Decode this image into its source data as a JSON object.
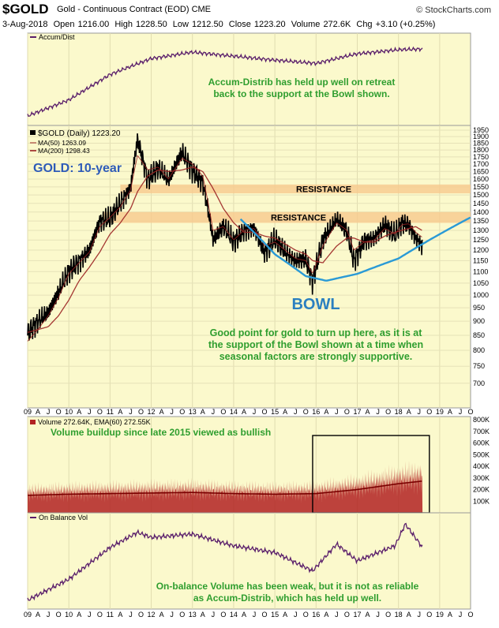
{
  "header": {
    "ticker": "$GOLD",
    "subtitle": "Gold - Continuous Contract (EOD)  CME",
    "brand": "© StockCharts.com",
    "date": "3-Aug-2018",
    "open_label": "Open",
    "open": "1216.00",
    "high_label": "High",
    "high": "1228.50",
    "low_label": "Low",
    "low": "1212.50",
    "close_label": "Close",
    "close": "1223.20",
    "volume_label": "Volume",
    "volume": "272.6K",
    "chg_label": "Chg",
    "chg": "+3.10 (+0.25%)"
  },
  "colors": {
    "panel_bg": "#fbf9cc",
    "price": "#000000",
    "ma": "#9b2222",
    "indicator": "#5a1f6b",
    "annotation": "#2f9e2f",
    "bowl": "#2a9ad6",
    "resistance_band": "#f7c98d",
    "title": "#2e5bb8",
    "volume_fill": "#b22222"
  },
  "x_axis": {
    "tick_labels": [
      "09",
      "A",
      "J",
      "O",
      "10",
      "A",
      "J",
      "O",
      "11",
      "A",
      "J",
      "O",
      "12",
      "A",
      "J",
      "O",
      "13",
      "A",
      "J",
      "O",
      "14",
      "A",
      "J",
      "O",
      "15",
      "A",
      "J",
      "O",
      "16",
      "A",
      "J",
      "O",
      "17",
      "A",
      "J",
      "O",
      "18",
      "A",
      "J",
      "O",
      "19",
      "A",
      "J",
      "O"
    ],
    "range": [
      "2009-01",
      "2019-10"
    ]
  },
  "chart_data": [
    {
      "type": "line",
      "legend": "Accum/Dist",
      "x": [
        "2009-01",
        "2010-01",
        "2011-01",
        "2012-01",
        "2013-01",
        "2014-01",
        "2015-01",
        "2016-01",
        "2017-01",
        "2018-01",
        "2018-08"
      ],
      "values": [
        8,
        28,
        60,
        80,
        88,
        83,
        78,
        74,
        86,
        91,
        92
      ],
      "annotation": "Accum-Distrib has held up well on retreat back to the support at the Bowl shown."
    },
    {
      "type": "line",
      "legend_title": "$GOLD (Daily) 1223.20",
      "legend": [
        "MA(50) 1263.09",
        "MA(200) 1298.43"
      ],
      "big_label": "GOLD: 10-year",
      "y_scale": "log",
      "ylim": [
        650,
        1950
      ],
      "y_ticks": [
        700,
        750,
        800,
        850,
        900,
        950,
        1000,
        1050,
        1100,
        1150,
        1200,
        1250,
        1300,
        1350,
        1400,
        1450,
        1500,
        1550,
        1600,
        1650,
        1700,
        1750,
        1800,
        1850,
        1900,
        1950
      ],
      "x": [
        "2009-01",
        "2009-04",
        "2009-07",
        "2009-10",
        "2010-01",
        "2010-04",
        "2010-07",
        "2010-10",
        "2011-01",
        "2011-04",
        "2011-07",
        "2011-09",
        "2011-12",
        "2012-03",
        "2012-06",
        "2012-10",
        "2013-01",
        "2013-04",
        "2013-07",
        "2013-10",
        "2014-01",
        "2014-04",
        "2014-07",
        "2014-10",
        "2015-01",
        "2015-04",
        "2015-07",
        "2015-10",
        "2015-12",
        "2016-03",
        "2016-07",
        "2016-10",
        "2016-12",
        "2017-03",
        "2017-06",
        "2017-09",
        "2017-12",
        "2018-02",
        "2018-04",
        "2018-06",
        "2018-08"
      ],
      "series": [
        {
          "name": "$GOLD",
          "values": [
            860,
            900,
            930,
            1010,
            1100,
            1150,
            1200,
            1350,
            1360,
            1450,
            1550,
            1880,
            1600,
            1670,
            1590,
            1780,
            1660,
            1580,
            1250,
            1320,
            1240,
            1300,
            1310,
            1190,
            1250,
            1190,
            1150,
            1160,
            1060,
            1250,
            1360,
            1290,
            1150,
            1250,
            1260,
            1330,
            1270,
            1340,
            1330,
            1260,
            1223
          ]
        },
        {
          "name": "MA(50)",
          "values": [
            830,
            870,
            920,
            990,
            1090,
            1140,
            1190,
            1320,
            1370,
            1430,
            1530,
            1760,
            1660,
            1680,
            1600,
            1740,
            1700,
            1620,
            1300,
            1320,
            1250,
            1300,
            1310,
            1220,
            1240,
            1200,
            1160,
            1150,
            1090,
            1220,
            1340,
            1300,
            1200,
            1240,
            1250,
            1310,
            1280,
            1330,
            1335,
            1290,
            1263
          ]
        },
        {
          "name": "MA(200)",
          "values": [
            860,
            870,
            880,
            920,
            980,
            1060,
            1120,
            1190,
            1280,
            1340,
            1420,
            1520,
            1620,
            1660,
            1650,
            1660,
            1680,
            1650,
            1540,
            1420,
            1340,
            1290,
            1290,
            1270,
            1260,
            1230,
            1200,
            1180,
            1150,
            1140,
            1220,
            1260,
            1260,
            1240,
            1240,
            1270,
            1290,
            1300,
            1310,
            1320,
            1298
          ]
        }
      ],
      "resistance_bands": [
        {
          "label": "RESISTANCE",
          "low": 1510,
          "high": 1565
        },
        {
          "label": "RESISTANCE",
          "low": 1340,
          "high": 1400
        }
      ],
      "bowl": {
        "label": "BOWL",
        "x": [
          "2014-03",
          "2015-01",
          "2015-10",
          "2016-04",
          "2017-01",
          "2018-01",
          "2019-10"
        ],
        "values": [
          1360,
          1180,
          1080,
          1060,
          1090,
          1160,
          1370
        ]
      },
      "annotation": "Good point for gold to turn up here, as it is at the support of the Bowl shown at a time when seasonal factors are strongly supportive."
    },
    {
      "type": "bar",
      "legend": "Volume 272.64K, EMA(60) 272.55K",
      "ylim": [
        0,
        800000
      ],
      "y_tick_labels": [
        "100K",
        "200K",
        "300K",
        "400K",
        "500K",
        "600K",
        "700K",
        "800K"
      ],
      "y_tick_values": [
        100000,
        200000,
        300000,
        400000,
        500000,
        600000,
        700000,
        800000
      ],
      "x": [
        "2009-01",
        "2010-01",
        "2011-01",
        "2012-01",
        "2013-01",
        "2014-01",
        "2015-01",
        "2016-01",
        "2017-01",
        "2018-01",
        "2018-08"
      ],
      "ema_values": [
        150000,
        160000,
        165000,
        170000,
        175000,
        165000,
        160000,
        165000,
        200000,
        250000,
        272550
      ],
      "annotation": "Volume buildup since late 2015 viewed as bullish"
    },
    {
      "type": "line",
      "legend": "On Balance Vol",
      "x": [
        "2009-01",
        "2010-01",
        "2011-01",
        "2011-09",
        "2012-01",
        "2013-01",
        "2014-01",
        "2015-01",
        "2015-12",
        "2016-07",
        "2017-01",
        "2017-12",
        "2018-03",
        "2018-08"
      ],
      "values": [
        5,
        30,
        68,
        86,
        80,
        84,
        70,
        62,
        40,
        72,
        52,
        70,
        96,
        68
      ],
      "annotation": "On-balance Volume has been weak, but it is not as reliable as Accum-Distrib, which has held up well."
    }
  ]
}
